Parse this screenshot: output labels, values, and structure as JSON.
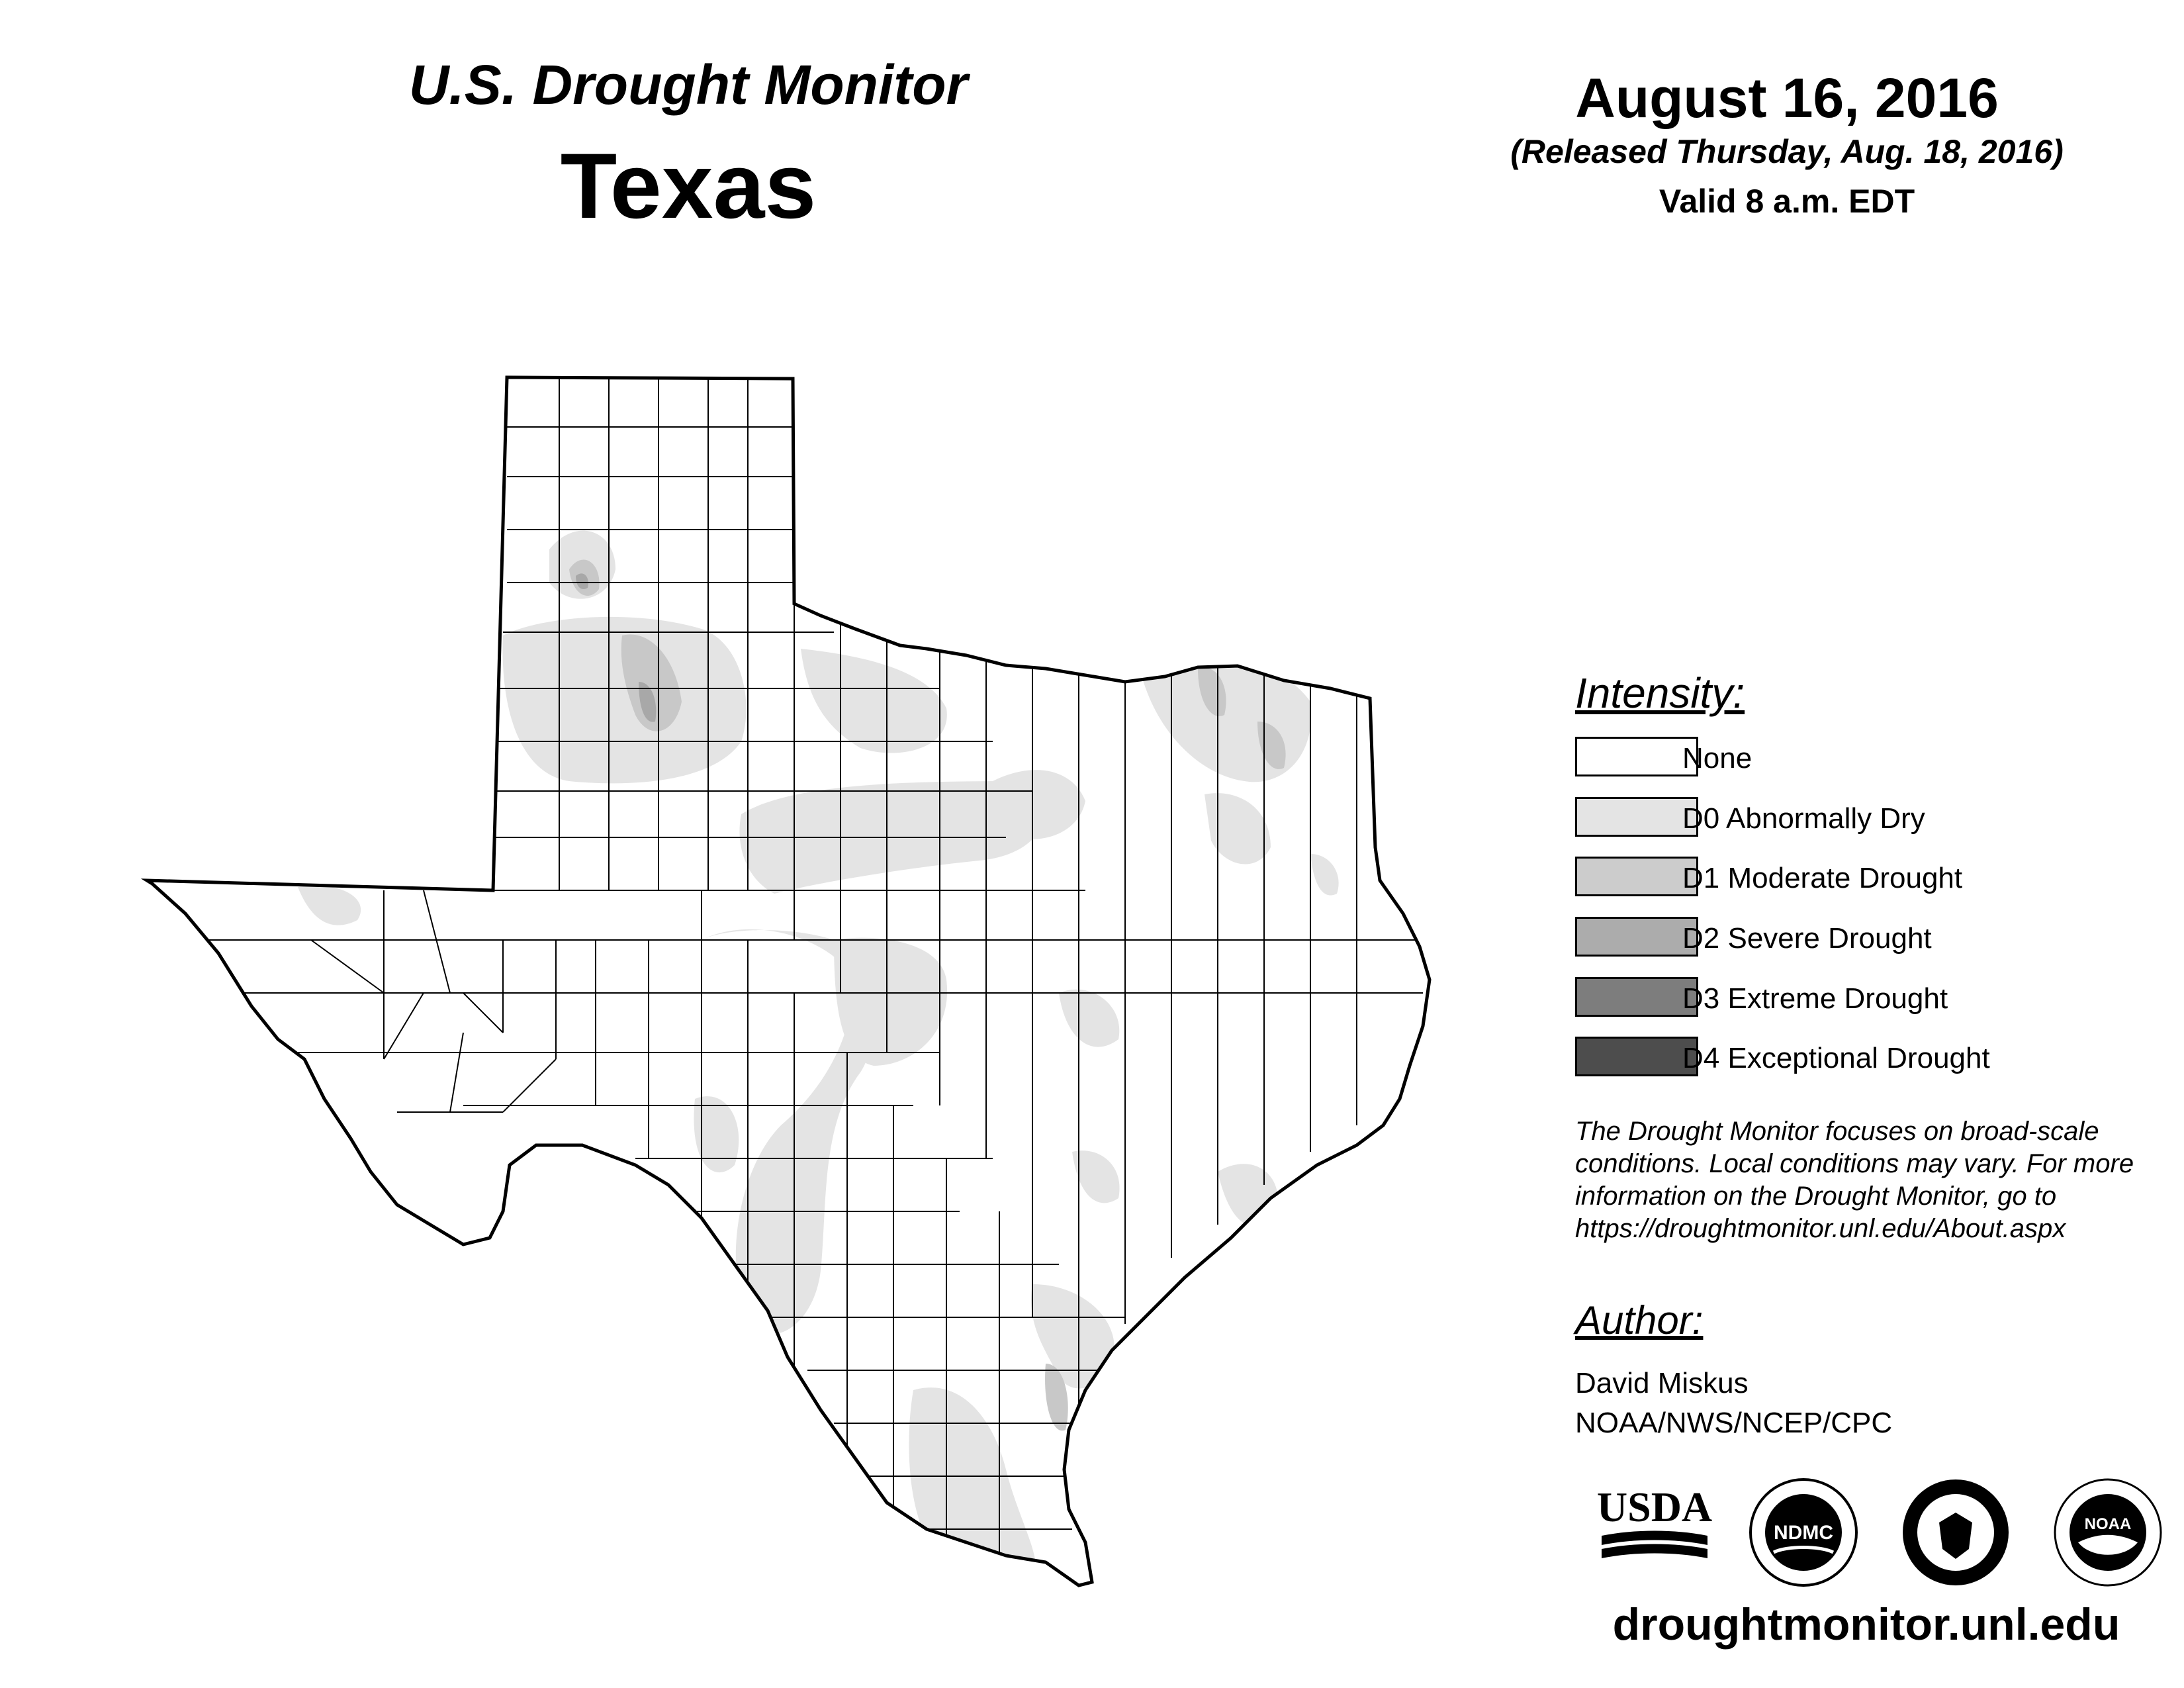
{
  "header": {
    "title_sub": "U.S. Drought Monitor",
    "title_main": "Texas",
    "date": "August 16, 2016",
    "released": "(Released Thursday, Aug. 18, 2016)",
    "valid": "Valid 8 a.m. EDT"
  },
  "legend": {
    "heading": "Intensity:",
    "items": [
      {
        "label": "None",
        "color": "#ffffff"
      },
      {
        "label": "D0 Abnormally Dry",
        "color": "#e4e4e4"
      },
      {
        "label": "D1 Moderate Drought",
        "color": "#cccccc"
      },
      {
        "label": "D2 Severe Drought",
        "color": "#acacac"
      },
      {
        "label": "D3 Extreme Drought",
        "color": "#7d7d7d"
      },
      {
        "label": "D4 Exceptional Drought",
        "color": "#4d4d4d"
      }
    ]
  },
  "note": {
    "lines": [
      "The Drought Monitor focuses on broad-scale",
      "conditions. Local conditions may vary. For more",
      "information on the Drought Monitor, go to",
      "https://droughtmonitor.unl.edu/About.aspx"
    ]
  },
  "author": {
    "heading": "Author:",
    "name": "David Miskus",
    "org": "NOAA/NWS/NCEP/CPC"
  },
  "logos": {
    "usda": "USDA",
    "ndmc": "NDMC",
    "commerce_icon": "department-of-commerce-seal-icon",
    "noaa": "NOAA"
  },
  "footer": {
    "url": "droughtmonitor.unl.edu"
  }
}
